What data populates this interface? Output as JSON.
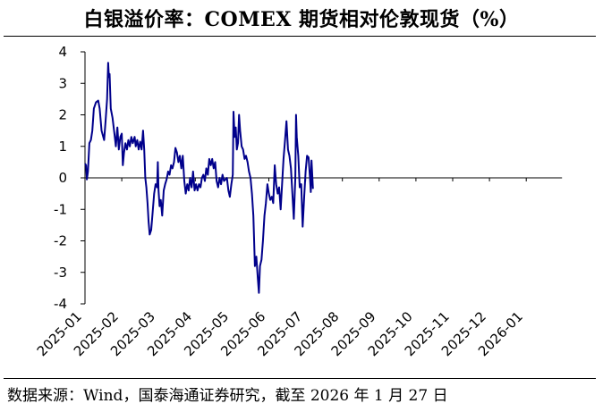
{
  "title": "白银溢价率：COMEX 期货相对伦敦现货（%）",
  "source": "数据来源：Wind，国泰海通证券研究，截至 2026 年 1 月 27 日",
  "colors": {
    "line": "#00008B",
    "axis": "#000000"
  },
  "chart_data": {
    "type": "line",
    "title": "白银溢价率：COMEX 期货相对伦敦现货（%）",
    "xlabel": "",
    "ylabel": "",
    "ylim": [
      -4,
      4
    ],
    "yticks": [
      4,
      3,
      2,
      1,
      0,
      -1,
      -2,
      -3,
      -4
    ],
    "xticks": [
      "2025-01",
      "2025-02",
      "2025-03",
      "2025-04",
      "2025-05",
      "2025-06",
      "2025-07",
      "2025-08",
      "2025-09",
      "2025-10",
      "2025-11",
      "2025-12",
      "2026-01"
    ],
    "grid": false,
    "legend": "none",
    "series": [
      {
        "values": [
          [
            0.0,
            0.45
          ],
          [
            0.03,
            0.4
          ],
          [
            0.05,
            -0.05
          ],
          [
            0.08,
            0.2
          ],
          [
            0.12,
            1.1
          ],
          [
            0.16,
            1.2
          ],
          [
            0.2,
            1.5
          ],
          [
            0.24,
            2.2
          ],
          [
            0.3,
            2.4
          ],
          [
            0.36,
            2.45
          ],
          [
            0.4,
            2.2
          ],
          [
            0.45,
            1.5
          ],
          [
            0.52,
            1.2
          ],
          [
            0.56,
            1.8
          ],
          [
            0.6,
            2.5
          ],
          [
            0.63,
            3.65
          ],
          [
            0.65,
            3.2
          ],
          [
            0.67,
            3.3
          ],
          [
            0.7,
            2.2
          ],
          [
            0.75,
            1.9
          ],
          [
            0.8,
            1.4
          ],
          [
            0.84,
            1.0
          ],
          [
            0.88,
            1.6
          ],
          [
            0.92,
            0.9
          ],
          [
            0.96,
            1.3
          ],
          [
            1.0,
            1.4
          ],
          [
            1.03,
            0.4
          ],
          [
            1.06,
            0.8
          ],
          [
            1.1,
            1.1
          ],
          [
            1.14,
            0.9
          ],
          [
            1.18,
            1.2
          ],
          [
            1.22,
            1.0
          ],
          [
            1.26,
            1.3
          ],
          [
            1.3,
            1.1
          ],
          [
            1.35,
            1.3
          ],
          [
            1.38,
            1.0
          ],
          [
            1.42,
            1.2
          ],
          [
            1.46,
            0.9
          ],
          [
            1.5,
            1.15
          ],
          [
            1.54,
            0.9
          ],
          [
            1.58,
            1.5
          ],
          [
            1.61,
            0.9
          ],
          [
            1.64,
            0.0
          ],
          [
            1.67,
            -0.3
          ],
          [
            1.7,
            -0.8
          ],
          [
            1.73,
            -1.4
          ],
          [
            1.76,
            -1.8
          ],
          [
            1.8,
            -1.65
          ],
          [
            1.84,
            -1.1
          ],
          [
            1.88,
            -0.5
          ],
          [
            1.92,
            -0.2
          ],
          [
            1.96,
            -0.3
          ],
          [
            1.98,
            0.5
          ],
          [
            2.0,
            -0.4
          ],
          [
            2.03,
            -0.9
          ],
          [
            2.06,
            -0.7
          ],
          [
            2.1,
            -1.2
          ],
          [
            2.14,
            -0.4
          ],
          [
            2.18,
            -0.2
          ],
          [
            2.22,
            -0.05
          ],
          [
            2.26,
            0.2
          ],
          [
            2.3,
            0.1
          ],
          [
            2.34,
            0.4
          ],
          [
            2.38,
            0.3
          ],
          [
            2.42,
            0.5
          ],
          [
            2.46,
            0.95
          ],
          [
            2.5,
            0.8
          ],
          [
            2.54,
            0.5
          ],
          [
            2.58,
            0.7
          ],
          [
            2.62,
            0.3
          ],
          [
            2.66,
            0.7
          ],
          [
            2.7,
            -0.1
          ],
          [
            2.74,
            -0.5
          ],
          [
            2.78,
            -0.2
          ],
          [
            2.82,
            -0.4
          ],
          [
            2.86,
            0.0
          ],
          [
            2.9,
            -0.3
          ],
          [
            2.94,
            0.2
          ],
          [
            2.98,
            -0.4
          ],
          [
            3.02,
            -0.2
          ],
          [
            3.06,
            -0.4
          ],
          [
            3.1,
            -0.2
          ],
          [
            3.14,
            -0.3
          ],
          [
            3.18,
            0.0
          ],
          [
            3.22,
            0.1
          ],
          [
            3.26,
            -0.1
          ],
          [
            3.3,
            0.3
          ],
          [
            3.34,
            0.1
          ],
          [
            3.38,
            0.6
          ],
          [
            3.42,
            0.4
          ],
          [
            3.46,
            0.6
          ],
          [
            3.5,
            0.3
          ],
          [
            3.54,
            0.5
          ],
          [
            3.58,
            -0.1
          ],
          [
            3.62,
            -0.3
          ],
          [
            3.66,
            0.0
          ],
          [
            3.7,
            -0.2
          ],
          [
            3.74,
            0.1
          ],
          [
            3.78,
            -0.1
          ],
          [
            3.82,
            -0.05
          ],
          [
            3.86,
            0.0
          ],
          [
            3.9,
            -0.4
          ],
          [
            3.94,
            -0.6
          ],
          [
            3.98,
            -0.2
          ],
          [
            4.02,
            0.1
          ],
          [
            4.04,
            2.1
          ],
          [
            4.07,
            1.3
          ],
          [
            4.1,
            1.6
          ],
          [
            4.13,
            0.9
          ],
          [
            4.16,
            1.1
          ],
          [
            4.19,
            2.0
          ],
          [
            4.22,
            1.5
          ],
          [
            4.26,
            1.0
          ],
          [
            4.3,
            0.9
          ],
          [
            4.34,
            0.6
          ],
          [
            4.38,
            0.7
          ],
          [
            4.42,
            0.5
          ],
          [
            4.46,
            0.2
          ],
          [
            4.5,
            0.0
          ],
          [
            4.54,
            -0.5
          ],
          [
            4.58,
            -1.2
          ],
          [
            4.62,
            -2.8
          ],
          [
            4.66,
            -2.5
          ],
          [
            4.7,
            -3.2
          ],
          [
            4.73,
            -3.65
          ],
          [
            4.76,
            -2.8
          ],
          [
            4.8,
            -2.6
          ],
          [
            4.84,
            -2.0
          ],
          [
            4.88,
            -1.2
          ],
          [
            4.92,
            -0.8
          ],
          [
            4.96,
            -0.2
          ],
          [
            5.0,
            -0.5
          ],
          [
            5.04,
            -0.7
          ],
          [
            5.08,
            -0.6
          ],
          [
            5.12,
            -0.8
          ],
          [
            5.16,
            0.4
          ],
          [
            5.2,
            -0.2
          ],
          [
            5.24,
            -0.5
          ],
          [
            5.28,
            -0.3
          ],
          [
            5.32,
            -1.0
          ],
          [
            5.36,
            -0.2
          ],
          [
            5.4,
            0.6
          ],
          [
            5.44,
            1.2
          ],
          [
            5.48,
            1.8
          ],
          [
            5.52,
            0.9
          ],
          [
            5.56,
            0.7
          ],
          [
            5.6,
            0.3
          ],
          [
            5.64,
            -0.5
          ],
          [
            5.68,
            -1.3
          ],
          [
            5.72,
            0.0
          ],
          [
            5.74,
            2.0
          ],
          [
            5.76,
            1.3
          ],
          [
            5.8,
            0.7
          ],
          [
            5.84,
            -0.3
          ],
          [
            5.88,
            -0.2
          ],
          [
            5.92,
            -1.55
          ],
          [
            5.96,
            -0.6
          ],
          [
            6.0,
            0.2
          ],
          [
            6.04,
            0.7
          ],
          [
            6.08,
            0.65
          ],
          [
            6.12,
            0.0
          ],
          [
            6.14,
            -0.45
          ],
          [
            6.16,
            0.55
          ],
          [
            6.2,
            -0.35
          ]
        ]
      }
    ]
  }
}
